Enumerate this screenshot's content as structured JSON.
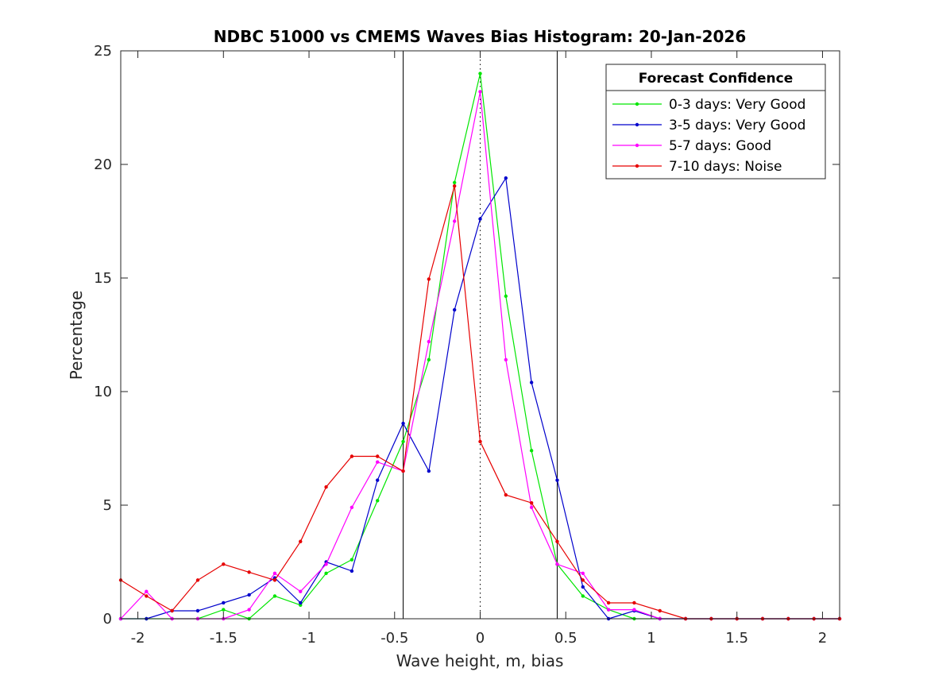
{
  "chart_data": {
    "type": "line",
    "title": "NDBC 51000 vs CMEMS Waves Bias Histogram: 20-Jan-2026",
    "xlabel": "Wave height, m, bias",
    "ylabel": "Percentage",
    "xlim": [
      -2.1,
      2.1
    ],
    "ylim": [
      0,
      25
    ],
    "xticks": [
      -2,
      -1.5,
      -1,
      -0.5,
      0,
      0.5,
      1,
      1.5,
      2
    ],
    "xtick_labels": [
      "-2",
      "-1.5",
      "-1",
      "-0.5",
      "0",
      "0.5",
      "1",
      "1.5",
      "2"
    ],
    "yticks": [
      0,
      5,
      10,
      15,
      20,
      25
    ],
    "ytick_labels": [
      "0",
      "5",
      "10",
      "15",
      "20",
      "25"
    ],
    "grid": false,
    "reference_lines": [
      {
        "x": -0.45,
        "style": "solid",
        "color": "#000000"
      },
      {
        "x": 0,
        "style": "dotted",
        "color": "#000000"
      },
      {
        "x": 0.45,
        "style": "solid",
        "color": "#000000"
      }
    ],
    "legend": {
      "title": "Forecast Confidence",
      "position": "top-right"
    },
    "x": [
      -2.1,
      -1.95,
      -1.8,
      -1.65,
      -1.5,
      -1.35,
      -1.2,
      -1.05,
      -0.9,
      -0.75,
      -0.6,
      -0.45,
      -0.3,
      -0.15,
      0,
      0.15,
      0.3,
      0.45,
      0.6,
      0.75,
      0.9,
      1.05,
      1.2,
      1.35,
      1.5,
      1.65,
      1.8,
      1.95,
      2.1
    ],
    "series": [
      {
        "name": "0-3 days: Very Good",
        "color": "#00e600",
        "values": [
          0,
          0,
          0,
          0,
          0.4,
          0,
          1.0,
          0.6,
          2.0,
          2.6,
          5.2,
          7.8,
          11.4,
          19.2,
          24.0,
          14.2,
          7.4,
          2.4,
          1.0,
          0.4,
          0,
          0,
          0,
          0,
          0,
          0,
          0,
          0,
          0
        ]
      },
      {
        "name": "3-5 days: Very Good",
        "color": "#0000cc",
        "values": [
          0,
          0,
          0.35,
          0.35,
          0.7,
          1.05,
          1.8,
          0.7,
          2.5,
          2.1,
          6.1,
          8.6,
          6.5,
          13.6,
          17.6,
          19.4,
          10.4,
          6.1,
          1.4,
          0,
          0.35,
          0,
          0,
          0,
          0,
          0,
          0,
          0,
          0
        ]
      },
      {
        "name": "5-7 days: Good",
        "color": "#ff00ff",
        "values": [
          0,
          1.2,
          0,
          0,
          0,
          0.4,
          2.0,
          1.2,
          2.4,
          4.9,
          6.9,
          6.5,
          12.2,
          17.5,
          23.2,
          11.4,
          4.9,
          2.4,
          2.0,
          0.4,
          0.4,
          0,
          0,
          0,
          0,
          0,
          0,
          0,
          0
        ]
      },
      {
        "name": "7-10 days: Noise",
        "color": "#e60000",
        "values": [
          1.7,
          1.0,
          0.35,
          1.7,
          2.4,
          2.05,
          1.7,
          3.4,
          5.8,
          7.15,
          7.15,
          6.5,
          14.95,
          19.05,
          7.8,
          5.45,
          5.1,
          3.4,
          1.7,
          0.7,
          0.7,
          0.35,
          0,
          0,
          0,
          0,
          0,
          0,
          0
        ]
      }
    ]
  }
}
